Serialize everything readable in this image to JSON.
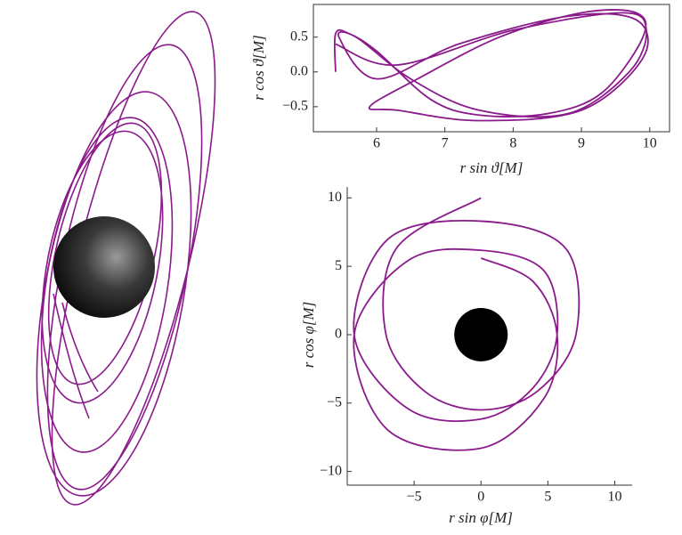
{
  "chart_data": [
    {
      "type": "line",
      "x_label": "r sin ϑ[M]",
      "y_label": "r cos ϑ[M]",
      "color": "#8b1a8b",
      "xlim": [
        5.075,
        10.29
      ],
      "ylim": [
        -0.86,
        0.97
      ],
      "xticks": [
        6,
        7,
        8,
        9,
        10
      ],
      "yticks": [
        {
          "value": 0.5,
          "label": "0.5"
        },
        {
          "value": 0,
          "label": "0.0"
        },
        {
          "value": -0.5,
          "label": "−0.5"
        }
      ],
      "x": [
        5.4,
        5.4,
        5.6,
        6.0,
        6.8,
        7.5,
        8.5,
        9.3,
        9.9,
        9.8,
        9.0,
        7.8,
        6.6,
        5.9,
        6.3,
        7.5,
        9.0,
        9.9,
        9.8,
        8.8,
        7.2,
        6.0,
        5.45,
        5.7,
        6.5,
        7.5,
        8.8,
        9.7,
        9.95,
        9.6,
        8.0,
        6.3,
        5.4
      ],
      "values": [
        0.0,
        0.55,
        0.55,
        0.3,
        -0.4,
        -0.62,
        -0.6,
        -0.3,
        0.5,
        0.85,
        0.85,
        0.5,
        -0.1,
        -0.5,
        -0.55,
        -0.7,
        -0.55,
        0.2,
        0.75,
        0.8,
        0.4,
        -0.1,
        0.5,
        0.5,
        -0.1,
        -0.55,
        -0.6,
        0.0,
        0.6,
        0.85,
        0.6,
        0.1,
        0.4
      ]
    },
    {
      "type": "line",
      "x_label": "r sin φ[M]",
      "y_label": "r cos φ[M]",
      "color": "#8b1a8b",
      "xlim": [
        -10,
        11.3
      ],
      "ylim": [
        -11,
        10.8
      ],
      "xticks": [
        {
          "value": -5,
          "label": "−5"
        },
        0,
        5,
        10
      ],
      "yticks": [
        10,
        5,
        0,
        {
          "value": -5,
          "label": "−5"
        },
        {
          "value": -10,
          "label": "−10"
        }
      ],
      "x": [
        0,
        -6.32,
        -7.1,
        -4.17,
        0,
        4.17,
        7.1,
        6.32,
        0,
        -6.97,
        -9.48,
        -5.43,
        0,
        3.89,
        5.69,
        4.69,
        0,
        -5.43,
        -9.48,
        -6.97,
        0,
        4.69,
        5.69,
        3.89,
        0
      ],
      "values": [
        10,
        6.32,
        0,
        -4.17,
        -5.5,
        -4.17,
        0,
        6.32,
        8.3,
        6.97,
        0,
        -5.43,
        -6.17,
        -3.89,
        0,
        4.69,
        6.17,
        5.43,
        0,
        -6.97,
        -8.3,
        -4.69,
        0,
        3.89,
        5.6
      ]
    }
  ]
}
